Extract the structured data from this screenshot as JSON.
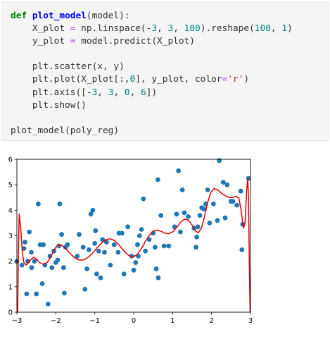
{
  "code_cell": {
    "lines": [
      [
        {
          "t": "def",
          "c": "kw"
        },
        {
          "t": " "
        },
        {
          "t": "plot_model",
          "c": "fn"
        },
        {
          "t": "(model):"
        }
      ],
      [
        {
          "t": "    X_plot "
        },
        {
          "t": "=",
          "c": "op"
        },
        {
          "t": " np.linspace(-"
        },
        {
          "t": "3",
          "c": "num"
        },
        {
          "t": ", "
        },
        {
          "t": "3",
          "c": "num"
        },
        {
          "t": ", "
        },
        {
          "t": "100",
          "c": "num"
        },
        {
          "t": ").reshape("
        },
        {
          "t": "100",
          "c": "num"
        },
        {
          "t": ", "
        },
        {
          "t": "1",
          "c": "num"
        },
        {
          "t": ")"
        }
      ],
      [
        {
          "t": "    y_plot "
        },
        {
          "t": "=",
          "c": "op"
        },
        {
          "t": " model.predict(X_plot)"
        }
      ],
      [],
      [
        {
          "t": "    plt.scatter(x, y)"
        }
      ],
      [
        {
          "t": "    plt.plot(X_plot[:,"
        },
        {
          "t": "0",
          "c": "num"
        },
        {
          "t": "], y_plot, color"
        },
        {
          "t": "=",
          "c": "op"
        },
        {
          "t": "'r'",
          "c": "str"
        },
        {
          "t": ")"
        }
      ],
      [
        {
          "t": "    plt.axis([-"
        },
        {
          "t": "3",
          "c": "num"
        },
        {
          "t": ", "
        },
        {
          "t": "3",
          "c": "num"
        },
        {
          "t": ", "
        },
        {
          "t": "0",
          "c": "num"
        },
        {
          "t": ", "
        },
        {
          "t": "6",
          "c": "num"
        },
        {
          "t": "])"
        }
      ],
      [
        {
          "t": "    plt.show()"
        }
      ],
      [],
      [
        {
          "t": "plot_model(poly_reg)"
        }
      ]
    ]
  },
  "chart_data": {
    "type": "scatter",
    "xlim": [
      -3,
      3
    ],
    "ylim": [
      0,
      6
    ],
    "x_ticks": [
      -3,
      -2,
      -1,
      0,
      1,
      2,
      3
    ],
    "y_ticks": [
      0,
      1,
      2,
      3,
      4,
      5,
      6
    ],
    "x_tick_labels": [
      "−3",
      "−2",
      "−1",
      "0",
      "1",
      "2",
      "3"
    ],
    "y_tick_labels": [
      "0",
      "1",
      "2",
      "3",
      "4",
      "5",
      "6"
    ],
    "grid": false,
    "points_color": "#1f77b4",
    "line_color": "#e00000",
    "points": [
      [
        -3.0,
        2.0
      ],
      [
        -2.87,
        1.85
      ],
      [
        -2.82,
        2.5
      ],
      [
        -2.79,
        2.75
      ],
      [
        -2.75,
        0.72
      ],
      [
        -2.72,
        2.0
      ],
      [
        -2.68,
        3.15
      ],
      [
        -2.63,
        2.35
      ],
      [
        -2.62,
        1.75
      ],
      [
        -2.55,
        2.0
      ],
      [
        -2.5,
        0.72
      ],
      [
        -2.45,
        4.25
      ],
      [
        -2.4,
        2.65
      ],
      [
        -2.35,
        1.12
      ],
      [
        -2.32,
        2.65
      ],
      [
        -2.28,
        1.85
      ],
      [
        -2.2,
        0.32
      ],
      [
        -2.15,
        2.2
      ],
      [
        -2.1,
        1.75
      ],
      [
        -2.05,
        2.4
      ],
      [
        -2.0,
        1.95
      ],
      [
        -1.95,
        2.05
      ],
      [
        -1.92,
        2.6
      ],
      [
        -1.9,
        4.25
      ],
      [
        -1.85,
        3.05
      ],
      [
        -1.8,
        1.75
      ],
      [
        -1.78,
        0.75
      ],
      [
        -1.75,
        2.55
      ],
      [
        -1.7,
        2.65
      ],
      [
        -1.45,
        2.2
      ],
      [
        -1.4,
        3.05
      ],
      [
        -1.3,
        2.55
      ],
      [
        -1.25,
        0.9
      ],
      [
        -1.2,
        1.7
      ],
      [
        -1.15,
        2.45
      ],
      [
        -1.1,
        3.85
      ],
      [
        -1.05,
        4.0
      ],
      [
        -1.0,
        2.7
      ],
      [
        -0.98,
        3.2
      ],
      [
        -0.95,
        1.5
      ],
      [
        -0.9,
        2.4
      ],
      [
        -0.85,
        1.35
      ],
      [
        -0.8,
        2.85
      ],
      [
        -0.75,
        2.35
      ],
      [
        -0.7,
        2.75
      ],
      [
        -0.6,
        1.85
      ],
      [
        -0.5,
        2.65
      ],
      [
        -0.4,
        2.35
      ],
      [
        -0.38,
        3.1
      ],
      [
        -0.3,
        3.1
      ],
      [
        -0.25,
        1.5
      ],
      [
        -0.15,
        3.35
      ],
      [
        -0.05,
        2.2
      ],
      [
        0.0,
        1.65
      ],
      [
        0.05,
        1.95
      ],
      [
        0.1,
        2.65
      ],
      [
        0.12,
        2.2
      ],
      [
        0.15,
        3.0
      ],
      [
        0.2,
        3.25
      ],
      [
        0.25,
        4.45
      ],
      [
        0.3,
        2.4
      ],
      [
        0.4,
        2.85
      ],
      [
        0.5,
        3.1
      ],
      [
        0.55,
        2.55
      ],
      [
        0.58,
        1.7
      ],
      [
        0.62,
        5.2
      ],
      [
        0.63,
        1.35
      ],
      [
        0.7,
        3.8
      ],
      [
        0.78,
        2.6
      ],
      [
        0.9,
        2.6
      ],
      [
        1.05,
        3.35
      ],
      [
        1.1,
        3.85
      ],
      [
        1.15,
        5.55
      ],
      [
        1.2,
        3.15
      ],
      [
        1.25,
        4.8
      ],
      [
        1.3,
        3.9
      ],
      [
        1.4,
        3.75
      ],
      [
        1.55,
        3.3
      ],
      [
        1.6,
        2.55
      ],
      [
        1.62,
        2.95
      ],
      [
        1.65,
        3.35
      ],
      [
        1.7,
        3.8
      ],
      [
        1.75,
        4.1
      ],
      [
        1.8,
        4.05
      ],
      [
        1.85,
        4.25
      ],
      [
        1.9,
        4.8
      ],
      [
        1.95,
        3.5
      ],
      [
        2.05,
        4.25
      ],
      [
        2.15,
        3.6
      ],
      [
        2.2,
        5.95
      ],
      [
        2.3,
        5.1
      ],
      [
        2.35,
        3.7
      ],
      [
        2.4,
        5.0
      ],
      [
        2.5,
        4.35
      ],
      [
        2.55,
        4.35
      ],
      [
        2.65,
        4.2
      ],
      [
        2.75,
        4.75
      ],
      [
        2.78,
        2.45
      ],
      [
        2.8,
        3.45
      ],
      [
        2.95,
        5.25
      ]
    ],
    "curve": [
      [
        -2.98,
        0.0
      ],
      [
        -2.96,
        2.4
      ],
      [
        -2.94,
        3.85
      ],
      [
        -2.9,
        3.3
      ],
      [
        -2.86,
        2.35
      ],
      [
        -2.82,
        1.95
      ],
      [
        -2.76,
        1.85
      ],
      [
        -2.68,
        2.0
      ],
      [
        -2.58,
        2.15
      ],
      [
        -2.5,
        2.1
      ],
      [
        -2.42,
        1.95
      ],
      [
        -2.32,
        1.88
      ],
      [
        -2.22,
        1.95
      ],
      [
        -2.12,
        2.2
      ],
      [
        -2.04,
        2.45
      ],
      [
        -1.96,
        2.62
      ],
      [
        -1.88,
        2.65
      ],
      [
        -1.8,
        2.58
      ],
      [
        -1.7,
        2.42
      ],
      [
        -1.6,
        2.25
      ],
      [
        -1.5,
        2.12
      ],
      [
        -1.4,
        2.05
      ],
      [
        -1.3,
        2.05
      ],
      [
        -1.2,
        2.12
      ],
      [
        -1.1,
        2.25
      ],
      [
        -1.0,
        2.42
      ],
      [
        -0.9,
        2.6
      ],
      [
        -0.8,
        2.75
      ],
      [
        -0.7,
        2.85
      ],
      [
        -0.6,
        2.88
      ],
      [
        -0.5,
        2.82
      ],
      [
        -0.4,
        2.68
      ],
      [
        -0.3,
        2.5
      ],
      [
        -0.2,
        2.32
      ],
      [
        -0.1,
        2.2
      ],
      [
        0.0,
        2.18
      ],
      [
        0.1,
        2.28
      ],
      [
        0.2,
        2.5
      ],
      [
        0.3,
        2.78
      ],
      [
        0.4,
        3.02
      ],
      [
        0.5,
        3.18
      ],
      [
        0.6,
        3.22
      ],
      [
        0.7,
        3.18
      ],
      [
        0.8,
        3.1
      ],
      [
        0.9,
        3.08
      ],
      [
        1.0,
        3.15
      ],
      [
        1.1,
        3.32
      ],
      [
        1.2,
        3.52
      ],
      [
        1.3,
        3.65
      ],
      [
        1.4,
        3.62
      ],
      [
        1.5,
        3.42
      ],
      [
        1.58,
        3.2
      ],
      [
        1.66,
        3.12
      ],
      [
        1.74,
        3.3
      ],
      [
        1.82,
        3.75
      ],
      [
        1.9,
        4.3
      ],
      [
        1.98,
        4.7
      ],
      [
        2.06,
        4.85
      ],
      [
        2.14,
        4.82
      ],
      [
        2.22,
        4.72
      ],
      [
        2.3,
        4.62
      ],
      [
        2.38,
        4.55
      ],
      [
        2.46,
        4.5
      ],
      [
        2.54,
        4.5
      ],
      [
        2.62,
        4.55
      ],
      [
        2.7,
        4.48
      ],
      [
        2.76,
        4.0
      ],
      [
        2.82,
        3.3
      ],
      [
        2.86,
        3.5
      ],
      [
        2.9,
        4.75
      ],
      [
        2.93,
        5.25
      ],
      [
        2.95,
        4.5
      ],
      [
        2.97,
        2.0
      ],
      [
        2.99,
        0.0
      ]
    ]
  }
}
